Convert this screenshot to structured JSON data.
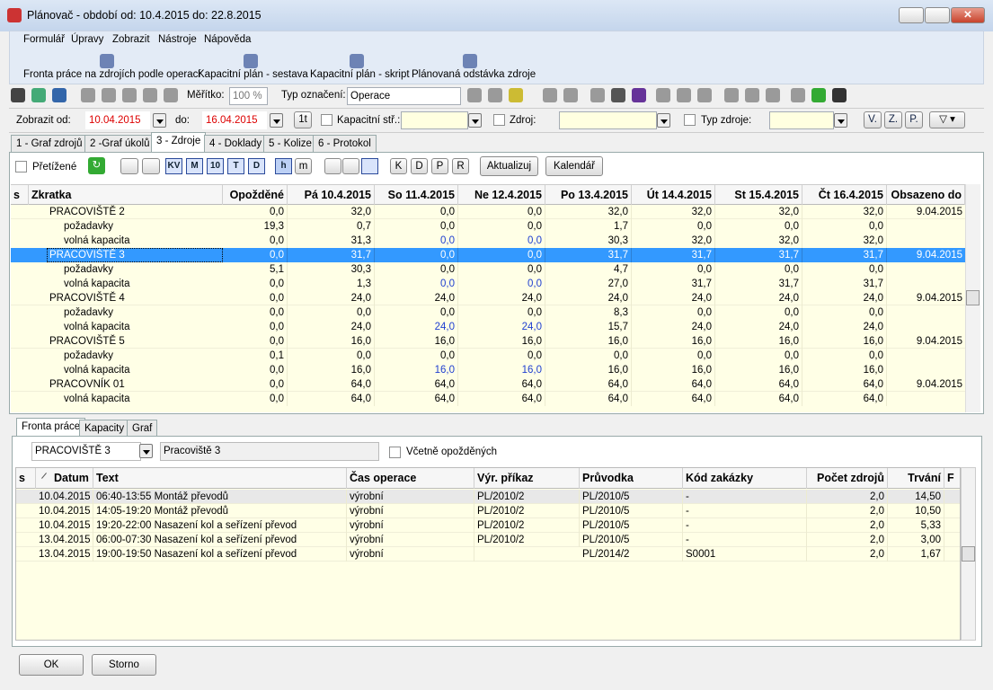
{
  "window": {
    "title": "Plánovač - období od: 10.4.2015 do: 22.8.2015"
  },
  "menu": [
    "Formulář",
    "Úpravy",
    "Zobrazit",
    "Nástroje",
    "Nápověda"
  ],
  "reports": [
    "Fronta práce na zdrojích podle operací",
    "Kapacitní plán - sestava",
    "Kapacitní plán - skript",
    "Plánovaná odstávka zdroje"
  ],
  "toolbar": {
    "scale_label": "Měřítko:",
    "scale": "100 %",
    "mark_type_label": "Typ označení:",
    "mark_type": "Operace"
  },
  "filter": {
    "from_label": "Zobrazit od:",
    "from": "10.04.2015",
    "to_label": "do:",
    "to": "16.04.2015",
    "step": "1t",
    "capacity_label": "Kapacitní stř.:",
    "source_label": "Zdroj:",
    "source_type_label": "Typ zdroje:",
    "buttons": [
      "V.",
      "Z.",
      "P."
    ]
  },
  "tabs": [
    "1 - Graf zdrojů",
    "2 -Graf úkolů",
    "3 - Zdroje",
    "4 - Doklady",
    "5 - Kolize",
    "6 - Protokol"
  ],
  "options": {
    "overloaded": "Přetížené",
    "unit_buttons": [
      "KV",
      "M",
      "10",
      "T",
      "D"
    ],
    "time_buttons": [
      "h",
      "m"
    ],
    "kind_buttons": [
      "K",
      "D",
      "P",
      "R"
    ],
    "refresh": "Aktualizuj",
    "calendar": "Kalendář"
  },
  "grid": {
    "columns": [
      "s",
      "Zkratka",
      "Opožděné",
      "Pá 10.4.2015",
      "So 11.4.2015",
      "Ne 12.4.2015",
      "Po 13.4.2015",
      "Út 14.4.2015",
      "St 15.4.2015",
      "Čt 16.4.2015",
      "Obsazeno do"
    ],
    "groups": [
      {
        "name": "PRACOVIŠTĚ 2",
        "values": [
          "0,0",
          "32,0",
          "0,0",
          "0,0",
          "32,0",
          "32,0",
          "32,0",
          "32,0"
        ],
        "occupied": "9.04.2015",
        "details": [
          {
            "label": "požadavky",
            "values": [
              "19,3",
              "0,7",
              "0,0",
              "0,0",
              "1,7",
              "0,0",
              "0,0",
              "0,0"
            ]
          },
          {
            "label": "volná kapacita",
            "values": [
              "0,0",
              "31,3",
              "0,0",
              "0,0",
              "30,3",
              "32,0",
              "32,0",
              "32,0"
            ]
          }
        ]
      },
      {
        "name": "PRACOVIŠTĚ 3",
        "selected": true,
        "values": [
          "0,0",
          "31,7",
          "0,0",
          "0,0",
          "31,7",
          "31,7",
          "31,7",
          "31,7"
        ],
        "occupied": "9.04.2015",
        "details": [
          {
            "label": "požadavky",
            "values": [
              "5,1",
              "30,3",
              "0,0",
              "0,0",
              "4,7",
              "0,0",
              "0,0",
              "0,0"
            ]
          },
          {
            "label": "volná kapacita",
            "values": [
              "0,0",
              "1,3",
              "0,0",
              "0,0",
              "27,0",
              "31,7",
              "31,7",
              "31,7"
            ]
          }
        ]
      },
      {
        "name": "PRACOVIŠTĚ 4",
        "values": [
          "0,0",
          "24,0",
          "24,0",
          "24,0",
          "24,0",
          "24,0",
          "24,0",
          "24,0"
        ],
        "occupied": "9.04.2015",
        "details": [
          {
            "label": "požadavky",
            "values": [
              "0,0",
              "0,0",
              "0,0",
              "0,0",
              "8,3",
              "0,0",
              "0,0",
              "0,0"
            ]
          },
          {
            "label": "volná kapacita",
            "values": [
              "0,0",
              "24,0",
              "24,0",
              "24,0",
              "15,7",
              "24,0",
              "24,0",
              "24,0"
            ]
          }
        ]
      },
      {
        "name": "PRACOVIŠTĚ 5",
        "values": [
          "0,0",
          "16,0",
          "16,0",
          "16,0",
          "16,0",
          "16,0",
          "16,0",
          "16,0"
        ],
        "occupied": "9.04.2015",
        "details": [
          {
            "label": "požadavky",
            "values": [
              "0,1",
              "0,0",
              "0,0",
              "0,0",
              "0,0",
              "0,0",
              "0,0",
              "0,0"
            ]
          },
          {
            "label": "volná kapacita",
            "values": [
              "0,0",
              "16,0",
              "16,0",
              "16,0",
              "16,0",
              "16,0",
              "16,0",
              "16,0"
            ]
          }
        ]
      },
      {
        "name": "PRACOVNÍK 01",
        "values": [
          "0,0",
          "64,0",
          "64,0",
          "64,0",
          "64,0",
          "64,0",
          "64,0",
          "64,0"
        ],
        "occupied": "9.04.2015",
        "details": [
          {
            "label": "volná kapacita",
            "values": [
              "0,0",
              "64,0",
              "64,0",
              "64,0",
              "64,0",
              "64,0",
              "64,0",
              "64,0"
            ]
          }
        ]
      }
    ]
  },
  "bottom_tabs": [
    "Fronta práce",
    "Kapacity",
    "Graf"
  ],
  "queue_filter": {
    "workplace": "PRACOVIŠTĚ 3",
    "workplace_name": "Pracoviště 3",
    "include_late": "Včetně opožděných"
  },
  "queue": {
    "columns": [
      "s",
      "Datum",
      "Text",
      "Čas operace",
      "Výr. příkaz",
      "Průvodka",
      "Kód zakázky",
      "Počet zdrojů",
      "Trvání",
      "F"
    ],
    "rows": [
      [
        "10.04.2015",
        "06:40-13:55 Montáž převodů",
        "výrobní",
        "PL/2010/2",
        "PL/2010/5",
        "-",
        "2,0",
        "14,50"
      ],
      [
        "10.04.2015",
        "14:05-19:20 Montáž převodů",
        "výrobní",
        "PL/2010/2",
        "PL/2010/5",
        "-",
        "2,0",
        "10,50"
      ],
      [
        "10.04.2015",
        "19:20-22:00 Nasazení kol a seřízení převod",
        "výrobní",
        "PL/2010/2",
        "PL/2010/5",
        "-",
        "2,0",
        "5,33"
      ],
      [
        "13.04.2015",
        "06:00-07:30 Nasazení kol a seřízení převod",
        "výrobní",
        "PL/2010/2",
        "PL/2010/5",
        "-",
        "2,0",
        "3,00"
      ],
      [
        "13.04.2015",
        "19:00-19:50 Nasazení kol a seřízení převod",
        "výrobní",
        null,
        "PL/2014/2",
        "S0001",
        "2,0",
        "1,67"
      ]
    ]
  },
  "buttons": {
    "ok": "OK",
    "cancel": "Storno"
  }
}
